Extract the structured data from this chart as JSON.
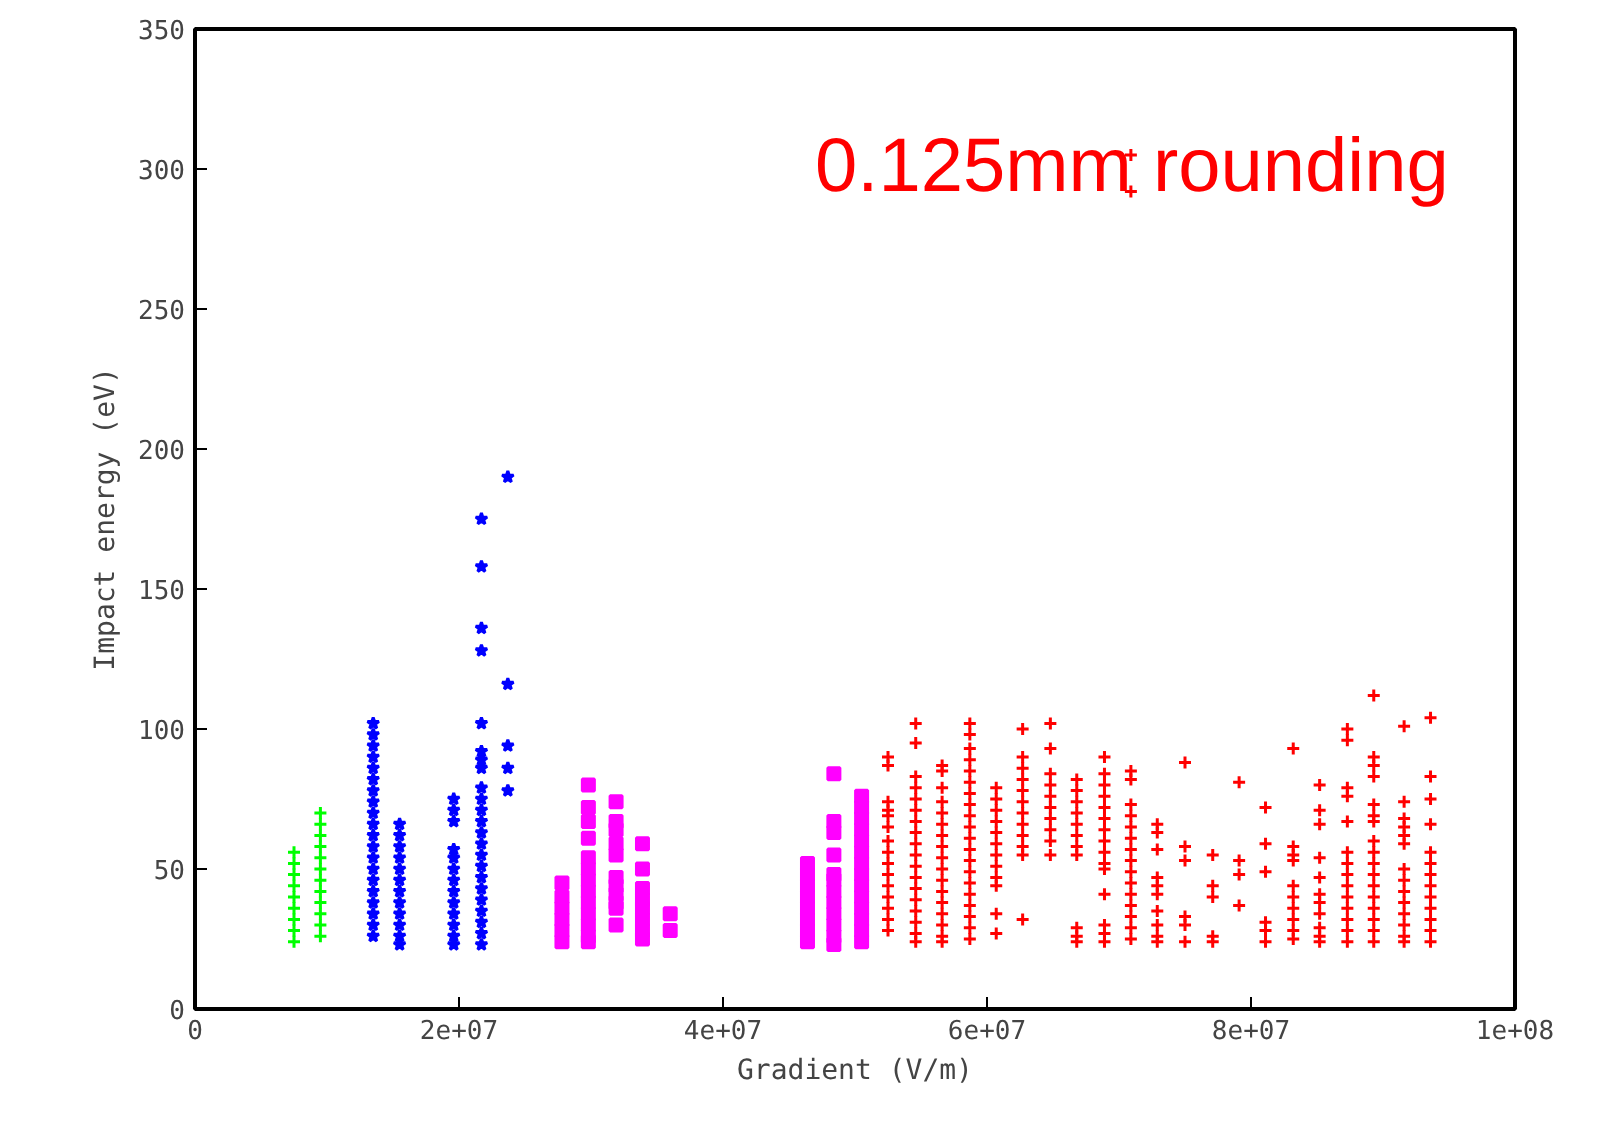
{
  "chart_data": {
    "type": "scatter",
    "xlabel": "Gradient (V/m)",
    "ylabel": "Impact energy (eV)",
    "annotations": [
      "0.125mm rounding"
    ],
    "xlim": [
      0,
      100000000
    ],
    "ylim": [
      0,
      350
    ],
    "xticks": [
      0,
      {
        "value": 20000000,
        "label": "2e+07"
      },
      {
        "value": 40000000,
        "label": "4e+07"
      },
      {
        "value": 60000000,
        "label": "6e+07"
      },
      {
        "value": 80000000,
        "label": "8e+07"
      },
      {
        "value": 100000000,
        "label": "1e+08"
      }
    ],
    "yticks": [
      0,
      50,
      100,
      150,
      200,
      250,
      300,
      350
    ],
    "grid": false,
    "series": [
      {
        "color": "#00ff00",
        "marker": "cross",
        "x": [
          7500000.0,
          7500000.0,
          7500000.0,
          7500000.0,
          7500000.0,
          7500000.0,
          7500000.0,
          7500000.0,
          7500000.0,
          9500000.0,
          9500000.0,
          9500000.0,
          9500000.0,
          9500000.0,
          9500000.0,
          9500000.0,
          9500000.0,
          9500000.0,
          9500000.0,
          9500000.0,
          9500000.0
        ],
        "values": [
          56,
          52,
          48,
          44,
          40,
          36,
          32,
          28,
          24,
          70,
          66,
          62,
          58,
          54,
          50,
          46,
          42,
          38,
          34,
          30,
          26
        ]
      },
      {
        "color": "#0000ff",
        "marker": "star",
        "x": [
          13500000.0,
          13500000.0,
          13500000.0,
          13500000.0,
          13500000.0,
          13500000.0,
          13500000.0,
          13500000.0,
          13500000.0,
          13500000.0,
          13500000.0,
          13500000.0,
          13500000.0,
          13500000.0,
          13500000.0,
          13500000.0,
          13500000.0,
          13500000.0,
          13500000.0,
          13500000.0,
          15500000.0,
          15500000.0,
          15500000.0,
          15500000.0,
          15500000.0,
          15500000.0,
          15500000.0,
          15500000.0,
          15500000.0,
          15500000.0,
          15500000.0,
          15500000.0,
          19600000.0,
          19600000.0,
          19600000.0,
          19600000.0,
          19600000.0,
          19600000.0,
          19600000.0,
          19600000.0,
          19600000.0,
          19600000.0,
          19600000.0,
          19600000.0,
          19600000.0,
          21700000.0,
          21700000.0,
          21700000.0,
          21700000.0,
          21700000.0,
          21700000.0,
          21700000.0,
          21700000.0,
          21700000.0,
          21700000.0,
          21700000.0,
          21700000.0,
          21700000.0,
          21700000.0,
          21700000.0,
          21700000.0,
          21700000.0,
          21700000.0,
          21700000.0,
          21700000.0,
          21700000.0,
          21700000.0,
          21700000.0,
          23700000.0,
          23700000.0,
          23700000.0,
          23700000.0,
          23700000.0
        ],
        "values": [
          102,
          98,
          94,
          90,
          86,
          82,
          78,
          74,
          70,
          66,
          62,
          58,
          54,
          50,
          46,
          42,
          38,
          34,
          30,
          26,
          66,
          62,
          58,
          54,
          50,
          46,
          42,
          38,
          34,
          30,
          26,
          23,
          75,
          71,
          67,
          57,
          54,
          50,
          46,
          42,
          38,
          34,
          30,
          26,
          23,
          175,
          158,
          136,
          128,
          102,
          92,
          89,
          86,
          79,
          75,
          71,
          67,
          63,
          59,
          55,
          51,
          47,
          43,
          39,
          35,
          31,
          27,
          23,
          190,
          116,
          94,
          86,
          78
        ]
      },
      {
        "color": "#ff00ff",
        "marker": "square",
        "x": [
          27800000.0,
          27800000.0,
          27800000.0,
          27800000.0,
          27800000.0,
          27800000.0,
          29800000.0,
          29800000.0,
          29800000.0,
          29800000.0,
          29800000.0,
          29800000.0,
          29800000.0,
          29800000.0,
          29800000.0,
          29800000.0,
          29800000.0,
          29800000.0,
          29800000.0,
          31900000.0,
          31900000.0,
          31900000.0,
          31900000.0,
          31900000.0,
          31900000.0,
          31900000.0,
          31900000.0,
          31900000.0,
          31900000.0,
          31900000.0,
          33900000.0,
          33900000.0,
          33900000.0,
          33900000.0,
          33900000.0,
          33900000.0,
          33900000.0,
          33900000.0,
          36000000.0,
          36000000.0,
          46400000.0,
          46400000.0,
          46400000.0,
          46400000.0,
          46400000.0,
          46400000.0,
          46400000.0,
          46400000.0,
          48400000.0,
          48400000.0,
          48400000.0,
          48400000.0,
          48400000.0,
          48400000.0,
          48400000.0,
          48400000.0,
          48400000.0,
          48400000.0,
          48400000.0,
          48400000.0,
          50500000.0,
          50500000.0,
          50500000.0,
          50500000.0,
          50500000.0,
          50500000.0,
          50500000.0,
          50500000.0,
          50500000.0,
          50500000.0,
          50500000.0,
          50500000.0,
          50500000.0,
          50500000.0
        ],
        "values": [
          45,
          40,
          36,
          32,
          28,
          24,
          80,
          72,
          67,
          61,
          54,
          50,
          46,
          42,
          38,
          34,
          30,
          26,
          24,
          74,
          67,
          64,
          59,
          55,
          47,
          44,
          41,
          38,
          36,
          30,
          59,
          50,
          43,
          39,
          36,
          32,
          28,
          25,
          34,
          28,
          52,
          48,
          44,
          40,
          36,
          32,
          28,
          24,
          84,
          67,
          63,
          55,
          48,
          46,
          42,
          38,
          34,
          30,
          26,
          23,
          76,
          72,
          68,
          64,
          60,
          56,
          52,
          48,
          44,
          40,
          36,
          32,
          28,
          24
        ]
      },
      {
        "color": "#ff0000",
        "marker": "cross",
        "x": [
          52500000.0,
          52500000.0,
          52500000.0,
          52500000.0,
          52500000.0,
          52500000.0,
          52500000.0,
          52500000.0,
          52500000.0,
          52500000.0,
          52500000.0,
          52500000.0,
          52500000.0,
          52500000.0,
          52500000.0,
          54600000.0,
          54600000.0,
          54600000.0,
          54600000.0,
          54600000.0,
          54600000.0,
          54600000.0,
          54600000.0,
          54600000.0,
          54600000.0,
          54600000.0,
          54600000.0,
          54600000.0,
          54600000.0,
          54600000.0,
          54600000.0,
          54600000.0,
          54600000.0,
          56600000.0,
          56600000.0,
          56600000.0,
          56600000.0,
          56600000.0,
          56600000.0,
          56600000.0,
          56600000.0,
          56600000.0,
          56600000.0,
          56600000.0,
          56600000.0,
          56600000.0,
          56600000.0,
          56600000.0,
          56600000.0,
          56600000.0,
          58700000.0,
          58700000.0,
          58700000.0,
          58700000.0,
          58700000.0,
          58700000.0,
          58700000.0,
          58700000.0,
          58700000.0,
          58700000.0,
          58700000.0,
          58700000.0,
          58700000.0,
          58700000.0,
          58700000.0,
          58700000.0,
          58700000.0,
          58700000.0,
          58700000.0,
          58700000.0,
          60700000.0,
          60700000.0,
          60700000.0,
          60700000.0,
          60700000.0,
          60700000.0,
          60700000.0,
          60700000.0,
          60700000.0,
          60700000.0,
          60700000.0,
          60700000.0,
          62700000.0,
          62700000.0,
          62700000.0,
          62700000.0,
          62700000.0,
          62700000.0,
          62700000.0,
          62700000.0,
          62700000.0,
          62700000.0,
          62700000.0,
          62700000.0,
          64800000.0,
          64800000.0,
          64800000.0,
          64800000.0,
          64800000.0,
          64800000.0,
          64800000.0,
          64800000.0,
          64800000.0,
          64800000.0,
          66800000.0,
          66800000.0,
          66800000.0,
          66800000.0,
          66800000.0,
          66800000.0,
          66800000.0,
          66800000.0,
          66800000.0,
          66800000.0,
          66800000.0,
          68900000.0,
          68900000.0,
          68900000.0,
          68900000.0,
          68900000.0,
          68900000.0,
          68900000.0,
          68900000.0,
          68900000.0,
          68900000.0,
          68900000.0,
          68900000.0,
          68900000.0,
          68900000.0,
          68900000.0,
          70900000.0,
          70900000.0,
          70900000.0,
          70900000.0,
          70900000.0,
          70900000.0,
          70900000.0,
          70900000.0,
          70900000.0,
          70900000.0,
          70900000.0,
          70900000.0,
          70900000.0,
          70900000.0,
          70900000.0,
          70900000.0,
          70900000.0,
          72900000.0,
          72900000.0,
          72900000.0,
          72900000.0,
          72900000.0,
          72900000.0,
          72900000.0,
          72900000.0,
          72900000.0,
          72900000.0,
          75000000.0,
          75000000.0,
          75000000.0,
          75000000.0,
          75000000.0,
          75000000.0,
          77100000.0,
          77100000.0,
          77100000.0,
          77100000.0,
          77100000.0,
          79100000.0,
          79100000.0,
          79100000.0,
          79100000.0,
          81100000.0,
          81100000.0,
          81100000.0,
          81100000.0,
          81100000.0,
          81100000.0,
          83200000.0,
          83200000.0,
          83200000.0,
          83200000.0,
          83200000.0,
          83200000.0,
          83200000.0,
          83200000.0,
          83200000.0,
          83200000.0,
          85200000.0,
          85200000.0,
          85200000.0,
          85200000.0,
          85200000.0,
          85200000.0,
          85200000.0,
          85200000.0,
          85200000.0,
          85200000.0,
          85200000.0,
          87300000.0,
          87300000.0,
          87300000.0,
          87300000.0,
          87300000.0,
          87300000.0,
          87300000.0,
          87300000.0,
          87300000.0,
          87300000.0,
          87300000.0,
          87300000.0,
          87300000.0,
          87300000.0,
          89300000.0,
          89300000.0,
          89300000.0,
          89300000.0,
          89300000.0,
          89300000.0,
          89300000.0,
          89300000.0,
          89300000.0,
          89300000.0,
          89300000.0,
          89300000.0,
          89300000.0,
          89300000.0,
          89300000.0,
          89300000.0,
          89300000.0,
          91600000.0,
          91600000.0,
          91600000.0,
          91600000.0,
          91600000.0,
          91600000.0,
          91600000.0,
          91600000.0,
          91600000.0,
          91600000.0,
          91600000.0,
          91600000.0,
          91600000.0,
          91600000.0,
          93600000.0,
          93600000.0,
          93600000.0,
          93600000.0,
          93600000.0,
          93600000.0,
          93600000.0,
          93600000.0,
          93600000.0,
          93600000.0,
          93600000.0,
          93600000.0,
          93600000.0
        ],
        "values": [
          90,
          87,
          74,
          71,
          69,
          65,
          60,
          56,
          52,
          48,
          44,
          40,
          36,
          32,
          28,
          102,
          95,
          83,
          79,
          75,
          71,
          67,
          63,
          59,
          55,
          51,
          47,
          43,
          39,
          35,
          31,
          27,
          24,
          87,
          85,
          79,
          74,
          70,
          66,
          62,
          58,
          54,
          50,
          46,
          42,
          38,
          34,
          30,
          26,
          24,
          102,
          98,
          93,
          89,
          85,
          81,
          77,
          73,
          69,
          65,
          61,
          57,
          53,
          49,
          45,
          41,
          37,
          33,
          29,
          25,
          79,
          75,
          71,
          67,
          63,
          59,
          55,
          51,
          47,
          44,
          34,
          27,
          100,
          90,
          86,
          82,
          78,
          74,
          70,
          66,
          62,
          58,
          55,
          32,
          102,
          93,
          84,
          80,
          76,
          72,
          68,
          64,
          60,
          55,
          82,
          78,
          74,
          70,
          66,
          62,
          58,
          55,
          29,
          26,
          24,
          90,
          84,
          80,
          76,
          72,
          68,
          64,
          60,
          56,
          52,
          50,
          41,
          30,
          27,
          24,
          305,
          292,
          85,
          82,
          73,
          69,
          65,
          61,
          57,
          53,
          49,
          45,
          41,
          37,
          33,
          29,
          25,
          66,
          63,
          57,
          47,
          44,
          41,
          35,
          30,
          26,
          24,
          88,
          58,
          53,
          33,
          30,
          24,
          55,
          44,
          40,
          26,
          24,
          81,
          53,
          48,
          37,
          72,
          59,
          49,
          31,
          28,
          24,
          93,
          58,
          55,
          53,
          44,
          40,
          36,
          32,
          28,
          25,
          80,
          71,
          66,
          54,
          47,
          41,
          38,
          34,
          29,
          26,
          24,
          100,
          96,
          79,
          76,
          67,
          56,
          52,
          48,
          44,
          40,
          36,
          32,
          28,
          24,
          112,
          90,
          87,
          83,
          73,
          69,
          67,
          60,
          56,
          52,
          48,
          44,
          40,
          36,
          32,
          28,
          24,
          101,
          74,
          68,
          65,
          62,
          59,
          50,
          46,
          42,
          38,
          34,
          30,
          26,
          24,
          104,
          83,
          75,
          66,
          56,
          52,
          48,
          44,
          40,
          36,
          32,
          28,
          24
        ]
      }
    ]
  }
}
